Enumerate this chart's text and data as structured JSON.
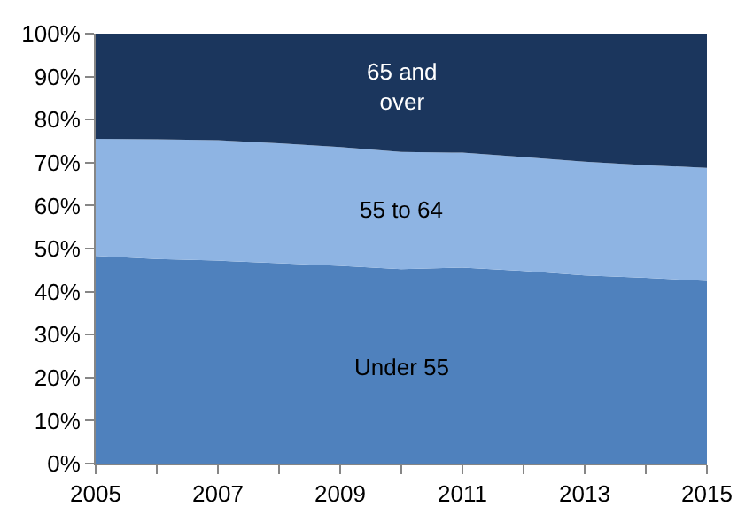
{
  "chart_data": {
    "type": "area",
    "stacked": true,
    "x": [
      2005,
      2006,
      2007,
      2008,
      2009,
      2010,
      2011,
      2012,
      2013,
      2014,
      2015
    ],
    "series": [
      {
        "name": "Under 55",
        "color": "#4f81bd",
        "values": [
          48.3,
          47.6,
          47.2,
          46.6,
          46.0,
          45.2,
          45.6,
          44.8,
          43.8,
          43.2,
          42.5
        ]
      },
      {
        "name": "55 to 64",
        "color": "#8eb4e3",
        "values": [
          27.2,
          27.8,
          28.0,
          27.9,
          27.6,
          27.3,
          26.7,
          26.5,
          26.4,
          26.2,
          26.3
        ]
      },
      {
        "name": "65 and\nover",
        "color": "#1b365d",
        "values": [
          24.5,
          24.6,
          24.8,
          25.5,
          26.4,
          27.5,
          27.7,
          28.7,
          29.8,
          30.6,
          31.2
        ]
      }
    ],
    "xlim": [
      2005,
      2015
    ],
    "xticks": [
      2005,
      {
        "value": 2006,
        "label": null
      },
      2007,
      {
        "value": 2008,
        "label": null
      },
      2009,
      {
        "value": 2010,
        "label": null
      },
      2011,
      {
        "value": 2012,
        "label": null
      },
      2013,
      {
        "value": 2014,
        "label": null
      },
      2015
    ],
    "ylim": [
      0,
      100
    ],
    "yticks": [
      {
        "value": 0,
        "label": "0%"
      },
      {
        "value": 10,
        "label": "10%"
      },
      {
        "value": 20,
        "label": "20%"
      },
      {
        "value": 30,
        "label": "30%"
      },
      {
        "value": 40,
        "label": "40%"
      },
      {
        "value": 50,
        "label": "50%"
      },
      {
        "value": 60,
        "label": "60%"
      },
      {
        "value": 70,
        "label": "70%"
      },
      {
        "value": 80,
        "label": "80%"
      },
      {
        "value": 90,
        "label": "90%"
      },
      {
        "value": 100,
        "label": "100%"
      }
    ],
    "legend": false
  }
}
